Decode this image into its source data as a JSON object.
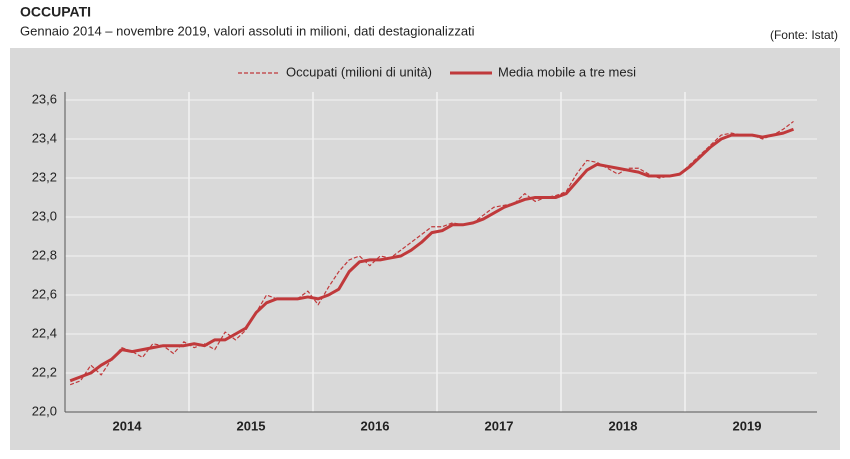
{
  "chart_data": {
    "type": "line",
    "title": "OCCUPATI",
    "subtitle": "Gennaio 2014 – novembre 2019, valori assoluti in milioni, dati destagionalizzati",
    "source": "(Fonte: Istat)",
    "year_labels": [
      "2014",
      "2015",
      "2016",
      "2017",
      "2018",
      "2019"
    ],
    "ylim": [
      22.0,
      23.6
    ],
    "yticks": [
      {
        "value": 22.0,
        "label": "22,0"
      },
      {
        "value": 22.2,
        "label": "22,2"
      },
      {
        "value": 22.4,
        "label": "22,4"
      },
      {
        "value": 22.6,
        "label": "22,6"
      },
      {
        "value": 22.8,
        "label": "22,8"
      },
      {
        "value": 23.0,
        "label": "23,0"
      },
      {
        "value": 23.2,
        "label": "23,2"
      },
      {
        "value": 23.4,
        "label": "23,4"
      },
      {
        "value": 23.6,
        "label": "23,6"
      }
    ],
    "grid": true,
    "series": [
      {
        "name": "Occupati (milioni di unità)",
        "color": "#c0393b",
        "dashed": true,
        "values": [
          22.14,
          22.16,
          22.24,
          22.19,
          22.27,
          22.33,
          22.31,
          22.28,
          22.35,
          22.34,
          22.3,
          22.36,
          22.33,
          22.35,
          22.32,
          22.41,
          22.37,
          22.42,
          22.51,
          22.6,
          22.58,
          22.58,
          22.58,
          22.62,
          22.55,
          22.64,
          22.72,
          22.78,
          22.8,
          22.75,
          22.8,
          22.79,
          22.83,
          22.87,
          22.91,
          22.95,
          22.95,
          22.97,
          22.96,
          22.97,
          23.01,
          23.05,
          23.06,
          23.07,
          23.12,
          23.08,
          23.1,
          23.11,
          23.13,
          23.22,
          23.29,
          23.28,
          23.25,
          23.22,
          23.25,
          23.25,
          23.22,
          23.2,
          23.21,
          23.22,
          23.27,
          23.32,
          23.37,
          23.42,
          23.43,
          23.42,
          23.42,
          23.4,
          23.42,
          23.45,
          23.49
        ]
      },
      {
        "name": "Media mobile a tre mesi",
        "color": "#c0393b",
        "dashed": false,
        "values": [
          22.16,
          22.18,
          22.2,
          22.24,
          22.27,
          22.32,
          22.31,
          22.32,
          22.33,
          22.34,
          22.34,
          22.34,
          22.35,
          22.34,
          22.37,
          22.37,
          22.4,
          22.43,
          22.51,
          22.56,
          22.58,
          22.58,
          22.58,
          22.59,
          22.58,
          22.6,
          22.63,
          22.72,
          22.77,
          22.78,
          22.78,
          22.79,
          22.8,
          22.83,
          22.87,
          22.92,
          22.93,
          22.96,
          22.96,
          22.97,
          22.99,
          23.02,
          23.05,
          23.07,
          23.09,
          23.1,
          23.1,
          23.1,
          23.12,
          23.18,
          23.24,
          23.27,
          23.26,
          23.25,
          23.24,
          23.23,
          23.21,
          23.21,
          23.21,
          23.22,
          23.26,
          23.31,
          23.36,
          23.4,
          23.42,
          23.42,
          23.42,
          23.41,
          23.42,
          23.43,
          23.45
        ]
      }
    ]
  }
}
